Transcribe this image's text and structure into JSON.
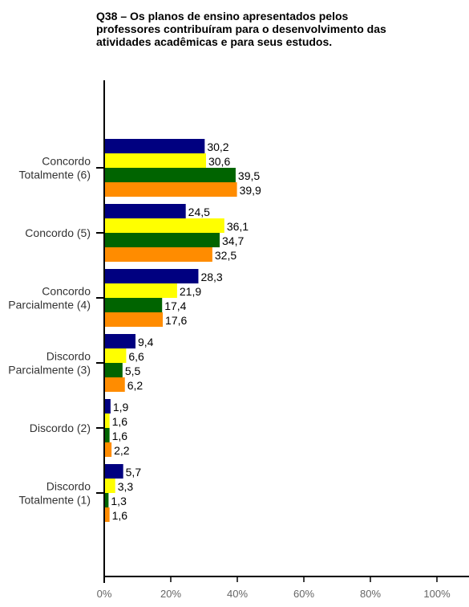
{
  "chart_data": {
    "type": "bar",
    "orientation": "horizontal",
    "title": "Q38 – Os planos de ensino apresentados pelos\n professores contribuíram para o desenvolvimento das\n atividades acadêmicas e para seus estudos.",
    "categories": [
      [
        "Concordo",
        "Totalmente (6)"
      ],
      [
        "Concordo (5)"
      ],
      [
        "Concordo",
        "Parcialmente (4)"
      ],
      [
        "Discordo",
        "Parcialmente (3)"
      ],
      [
        "Discordo (2)"
      ],
      [
        "Discordo",
        "Totalmente (1)"
      ]
    ],
    "series": [
      {
        "color": "#000080",
        "values": [
          30.2,
          24.5,
          28.3,
          9.4,
          1.9,
          5.7
        ],
        "labels": [
          "30,2",
          "24,5",
          "28,3",
          "9,4",
          "1,9",
          "5,7"
        ]
      },
      {
        "color": "#FFFF00",
        "values": [
          30.6,
          36.1,
          21.9,
          6.6,
          1.6,
          3.3
        ],
        "labels": [
          "30,6",
          "36,1",
          "21,9",
          "6,6",
          "1,6",
          "3,3"
        ]
      },
      {
        "color": "#006400",
        "values": [
          39.5,
          34.7,
          17.4,
          5.5,
          1.6,
          1.3
        ],
        "labels": [
          "39,5",
          "34,7",
          "17,4",
          "5,5",
          "1,6",
          "1,3"
        ]
      },
      {
        "color": "#FF8C00",
        "values": [
          39.9,
          32.5,
          17.6,
          6.2,
          2.2,
          1.6
        ],
        "labels": [
          "39,9",
          "32,5",
          "17,6",
          "6,2",
          "2,2",
          "1,6"
        ]
      }
    ],
    "xlim": [
      0,
      100
    ],
    "xticks": [
      "0%",
      "20%",
      "40%",
      "60%",
      "80%",
      "100%"
    ],
    "legend": "none",
    "grid": false
  }
}
